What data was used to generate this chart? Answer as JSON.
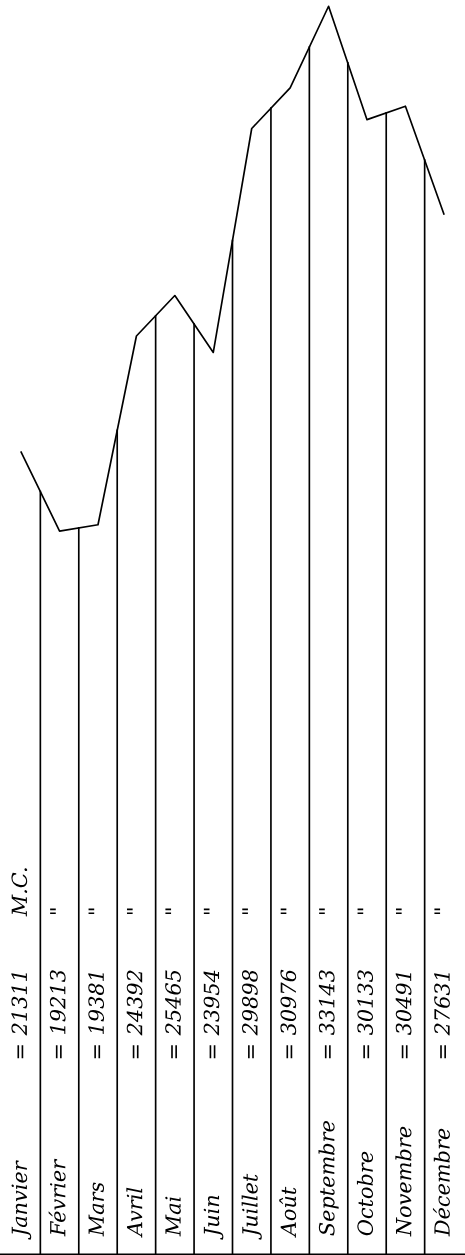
{
  "chart_data": {
    "type": "line",
    "color": "#000000",
    "categories": [
      "Janvier",
      "Février",
      "Mars",
      "Avril",
      "Mai",
      "Juin",
      "Juillet",
      "Août",
      "Septembre",
      "Octobre",
      "Novembre",
      "Décembre"
    ],
    "values": [
      21311,
      19213,
      19381,
      24392,
      25465,
      23954,
      29898,
      30976,
      33143,
      30133,
      30491,
      27631
    ],
    "data_labels": true,
    "annotations": [
      "=",
      "=",
      "=",
      "=",
      "=",
      "=",
      "=",
      "=",
      "=",
      "=",
      "=",
      "=",
      "M.C.",
      "\"",
      "\"",
      "\"",
      "\"",
      "\"",
      "\"",
      "\"",
      "\"",
      "\"",
      "\"",
      "\""
    ]
  }
}
